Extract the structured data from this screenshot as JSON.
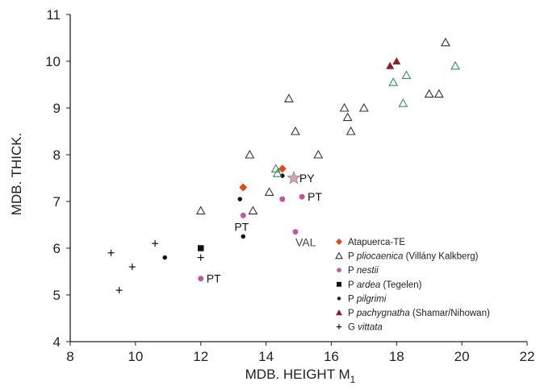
{
  "chart_data": {
    "type": "scatter",
    "xlabel": "MDB. HEIGHT M",
    "xlabel_sub": "1",
    "ylabel": "MDB. THICK.",
    "xlim": [
      8,
      22
    ],
    "ylim": [
      4,
      11
    ],
    "xticks": [
      8,
      10,
      12,
      14,
      16,
      18,
      20,
      22
    ],
    "yticks": [
      4,
      5,
      6,
      7,
      8,
      9,
      10,
      11
    ],
    "grid": false,
    "legend_position": "lower-right",
    "series": [
      {
        "name": "Atapuerca-TE",
        "marker": "diamond",
        "color": "#e04a1a",
        "points": [
          [
            13.3,
            7.3
          ],
          [
            14.5,
            7.7
          ]
        ]
      },
      {
        "name_parts": [
          "P",
          "pliocaenica",
          "(Villány Kalkberg)"
        ],
        "marker": "open-triangle",
        "color": "#333333",
        "points": [
          [
            12.0,
            6.8
          ],
          [
            13.5,
            8.0
          ],
          [
            13.6,
            6.8
          ],
          [
            14.1,
            7.2
          ],
          [
            14.7,
            9.2
          ],
          [
            14.9,
            8.5
          ],
          [
            15.6,
            8.0
          ],
          [
            16.4,
            9.0
          ],
          [
            16.5,
            8.8
          ],
          [
            16.6,
            8.5
          ],
          [
            17.0,
            9.0
          ],
          [
            19.0,
            9.3
          ],
          [
            19.3,
            9.3
          ],
          [
            19.5,
            10.4
          ]
        ]
      },
      {
        "name_parts": [
          "P",
          "nestii"
        ],
        "marker": "circle",
        "color": "#c2589a",
        "points": [
          [
            12.0,
            5.35
          ],
          [
            13.3,
            6.7
          ],
          [
            14.5,
            7.05
          ],
          [
            14.9,
            6.35
          ],
          [
            15.1,
            7.1
          ]
        ]
      },
      {
        "name_parts": [
          "P",
          "ardea",
          "(Tegelen)"
        ],
        "marker": "square",
        "color": "#111111",
        "points": [
          [
            12.0,
            6.0
          ]
        ]
      },
      {
        "name_parts": [
          "P",
          "pilgrimi"
        ],
        "marker": "dot",
        "color": "#111111",
        "points": [
          [
            10.9,
            5.8
          ],
          [
            13.2,
            7.05
          ],
          [
            13.3,
            6.25
          ],
          [
            14.5,
            7.55
          ]
        ]
      },
      {
        "name_parts": [
          "P",
          "pachygnatha",
          "(Shamar/Nihowan)"
        ],
        "marker": "triangle",
        "color": "#8e1f2a",
        "points": [
          [
            17.8,
            9.9
          ],
          [
            18.0,
            10.0
          ]
        ]
      },
      {
        "name_parts": [
          "G",
          "vittata"
        ],
        "marker": "plus",
        "color": "#111111",
        "points": [
          [
            9.25,
            5.9
          ],
          [
            9.5,
            5.1
          ],
          [
            9.9,
            5.6
          ],
          [
            10.6,
            6.1
          ],
          [
            12.0,
            5.8
          ]
        ]
      }
    ],
    "extra_marks": [
      {
        "marker": "open-triangle-green",
        "color": "#3a8a6a",
        "points": [
          [
            14.3,
            7.7
          ],
          [
            14.35,
            7.6
          ],
          [
            17.9,
            9.55
          ],
          [
            18.2,
            9.1
          ],
          [
            18.3,
            9.7
          ],
          [
            19.8,
            9.9
          ]
        ]
      },
      {
        "marker": "star",
        "color": "#c9a9b6",
        "points": [
          [
            14.85,
            7.5
          ]
        ]
      }
    ],
    "annotations": [
      {
        "text": "PT",
        "x": 12.0,
        "y": 5.35,
        "position": "right"
      },
      {
        "text": "PT",
        "x": 13.3,
        "y": 6.7,
        "position": "below"
      },
      {
        "text": "PY",
        "x": 14.85,
        "y": 7.5,
        "position": "right"
      },
      {
        "text": "PT",
        "x": 15.1,
        "y": 7.1,
        "position": "right"
      },
      {
        "text": "VAL",
        "x": 14.9,
        "y": 6.35,
        "position": "below-right"
      }
    ]
  },
  "colors": {
    "axis": "#222222",
    "background": "#ffffff"
  }
}
